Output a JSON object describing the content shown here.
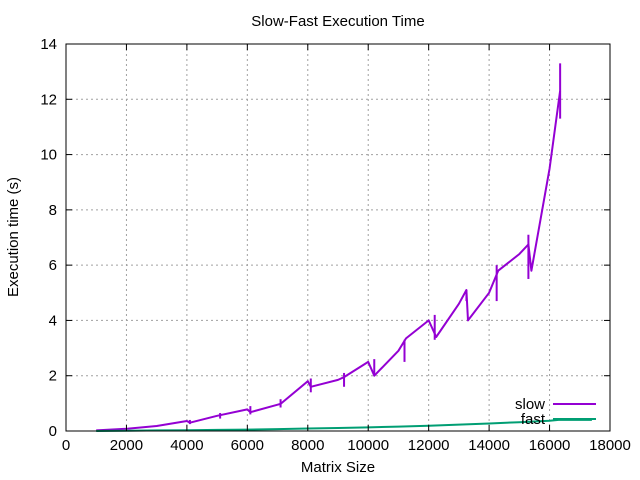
{
  "chart_data": {
    "type": "line",
    "title": "Slow-Fast Execution Time",
    "xlabel": "Matrix Size",
    "ylabel": "Execution time (s)",
    "xlim": [
      0,
      18000
    ],
    "ylim": [
      0,
      14
    ],
    "xticks": [
      0,
      2000,
      4000,
      6000,
      8000,
      10000,
      12000,
      14000,
      16000,
      18000
    ],
    "yticks": [
      0,
      2,
      4,
      6,
      8,
      10,
      12,
      14
    ],
    "grid": true,
    "legend_position": "bottom-right",
    "series": [
      {
        "name": "slow",
        "color": "#9400d3",
        "points": [
          [
            1000,
            0.02
          ],
          [
            2000,
            0.08
          ],
          [
            3000,
            0.18
          ],
          [
            4000,
            0.36
          ],
          [
            4100,
            0.3
          ],
          [
            5000,
            0.55
          ],
          [
            6000,
            0.78
          ],
          [
            6100,
            0.68
          ],
          [
            7000,
            0.95
          ],
          [
            7100,
            0.98
          ],
          [
            8000,
            1.8
          ],
          [
            8100,
            1.6
          ],
          [
            9000,
            1.85
          ],
          [
            9200,
            1.95
          ],
          [
            10000,
            2.5
          ],
          [
            10200,
            2.0
          ],
          [
            11000,
            2.9
          ],
          [
            11250,
            3.35
          ],
          [
            12000,
            4.0
          ],
          [
            12250,
            3.4
          ],
          [
            13000,
            4.6
          ],
          [
            13250,
            5.1
          ],
          [
            13300,
            4.0
          ],
          [
            14000,
            5.0
          ],
          [
            14300,
            5.8
          ],
          [
            15000,
            6.4
          ],
          [
            15300,
            6.75
          ],
          [
            15400,
            5.8
          ],
          [
            16000,
            9.5
          ],
          [
            16350,
            12.3
          ]
        ],
        "error_bars": [
          {
            "x": 4100,
            "low": 0.25,
            "high": 0.4
          },
          {
            "x": 5100,
            "low": 0.45,
            "high": 0.65
          },
          {
            "x": 6100,
            "low": 0.6,
            "high": 0.9
          },
          {
            "x": 7100,
            "low": 0.85,
            "high": 1.15
          },
          {
            "x": 8100,
            "low": 1.4,
            "high": 1.9
          },
          {
            "x": 9200,
            "low": 1.6,
            "high": 2.1
          },
          {
            "x": 10200,
            "low": 2.0,
            "high": 2.6
          },
          {
            "x": 11200,
            "low": 2.5,
            "high": 3.3
          },
          {
            "x": 12200,
            "low": 3.3,
            "high": 4.2
          },
          {
            "x": 13250,
            "low": 4.7,
            "high": 5.1
          },
          {
            "x": 14250,
            "low": 4.7,
            "high": 6.0
          },
          {
            "x": 15300,
            "low": 5.5,
            "high": 7.1
          },
          {
            "x": 16350,
            "low": 11.3,
            "high": 13.3
          }
        ]
      },
      {
        "name": "fast",
        "color": "#009e73",
        "points": [
          [
            1000,
            0.0
          ],
          [
            2000,
            0.01
          ],
          [
            3000,
            0.02
          ],
          [
            4000,
            0.03
          ],
          [
            5000,
            0.04
          ],
          [
            6000,
            0.05
          ],
          [
            7000,
            0.07
          ],
          [
            8000,
            0.09
          ],
          [
            9000,
            0.11
          ],
          [
            10000,
            0.13
          ],
          [
            11000,
            0.16
          ],
          [
            12000,
            0.19
          ],
          [
            13000,
            0.23
          ],
          [
            14000,
            0.27
          ],
          [
            15000,
            0.32
          ],
          [
            16000,
            0.37
          ],
          [
            16300,
            0.4
          ],
          [
            17400,
            0.4
          ]
        ],
        "error_bars": []
      }
    ]
  }
}
